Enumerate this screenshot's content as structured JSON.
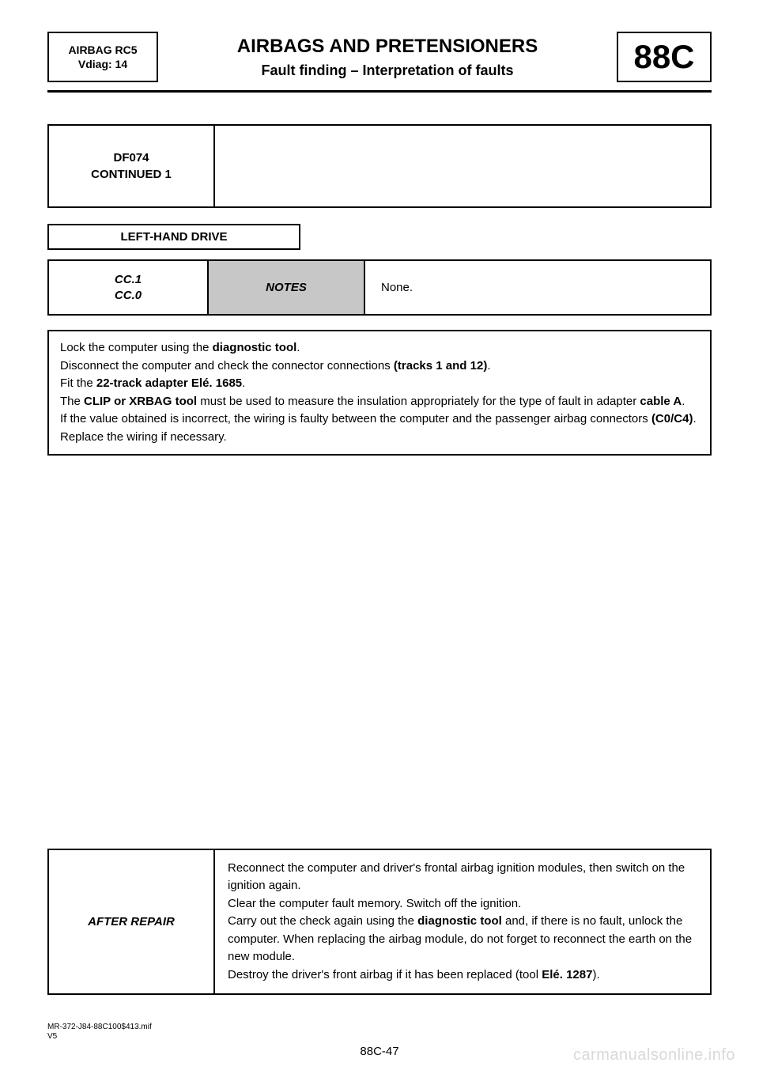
{
  "header": {
    "model_line1": "AIRBAG RC5",
    "model_line2": "Vdiag: 14",
    "title1": "AIRBAGS AND PRETENSIONERS",
    "title2": "Fault finding – Interpretation of faults",
    "section_code": "88C"
  },
  "fault_banner": {
    "code_line1": "DF074",
    "code_line2": "CONTINUED 1"
  },
  "drive_label": "LEFT-HAND DRIVE",
  "notes_row": {
    "left_line1": "CC.1",
    "left_line2": "CC.0",
    "mid_label": "NOTES",
    "right_text": "None."
  },
  "instructions": {
    "l1a": "Lock the computer using the ",
    "l1b_bold": "diagnostic tool",
    "l1c": ".",
    "l2a": "Disconnect the computer and check the connector connections ",
    "l2b_bold": "(tracks 1 and 12)",
    "l2c": ".",
    "l3a": "Fit the ",
    "l3b_bold": "22-track adapter Elé. 1685",
    "l3c": ".",
    "l4a": "The ",
    "l4b_bold": "CLIP or XRBAG tool",
    "l4c": " must be used to measure the insulation appropriately for the type of fault in adapter ",
    "l4d_bold": "cable A",
    "l4e": ".",
    "l5a": "If the value obtained is incorrect, the wiring is faulty between the computer and the passenger airbag connectors ",
    "l5b_bold": "(C0/C4)",
    "l5c": ".",
    "l6": "Replace the wiring if necessary."
  },
  "after_repair": {
    "label": "AFTER REPAIR",
    "l1": "Reconnect the computer and driver's frontal airbag ignition modules, then switch on the ignition again.",
    "l2": "Clear the computer fault memory. Switch off the ignition.",
    "l3a": "Carry out the check again using the ",
    "l3b_bold": "diagnostic tool",
    "l3c": " and, if there is no fault, unlock the computer. When replacing the airbag module, do not forget to reconnect the earth on the new module.",
    "l4a": "Destroy the driver's front airbag if it has been replaced (tool ",
    "l4b_bold": "Elé. 1287",
    "l4c": ")."
  },
  "footer": {
    "ref_line1": "MR-372-J84-88C100$413.mif",
    "ref_line2": "V5",
    "page_number": "88C-47"
  },
  "watermark": "carmanualsonline.info",
  "colors": {
    "notes_bg": "#c7c7c7",
    "text": "#000000",
    "page_bg": "#ffffff",
    "watermark": "#d9d9d9"
  }
}
